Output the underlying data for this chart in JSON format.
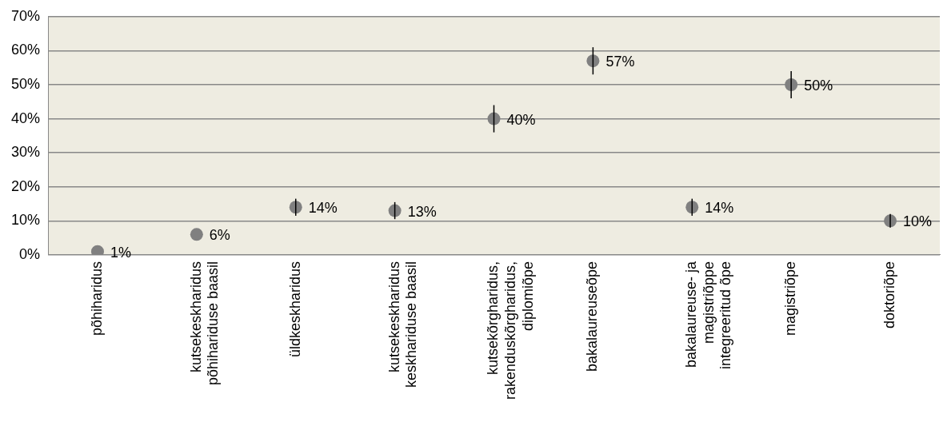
{
  "chart_data": {
    "type": "scatter",
    "categories": [
      "põhiharidus",
      "kutsekeskharidus põhihariduse baasil",
      "üldkeskharidus",
      "kutsekeskharidus keskhariduse baasil",
      "kutsekõrgharidus, rakenduskõrgharidus, diplomiõpe",
      "bakalaureuseõpe",
      "bakalaureuse- ja magistriõppe integreeritud õpe",
      "magistriõpe",
      "doktoriõpe"
    ],
    "values": [
      1,
      6,
      14,
      13,
      40,
      57,
      14,
      50,
      10
    ],
    "errors": [
      null,
      null,
      2.5,
      2.5,
      4,
      4,
      2.5,
      4,
      2
    ],
    "value_labels": [
      "1%",
      "6%",
      "14%",
      "13%",
      "40%",
      "57%",
      "14%",
      "50%",
      "10%"
    ],
    "color": "#808080",
    "marker": "circle",
    "ylim": [
      0,
      70
    ],
    "yticks": [
      {
        "value": 0,
        "label": "0%"
      },
      {
        "value": 10,
        "label": "10%"
      },
      {
        "value": 20,
        "label": "20%"
      },
      {
        "value": 30,
        "label": "30%"
      },
      {
        "value": 40,
        "label": "40%"
      },
      {
        "value": 50,
        "label": "50%"
      },
      {
        "value": 60,
        "label": "60%"
      },
      {
        "value": 70,
        "label": "70%"
      }
    ],
    "grid": "y",
    "legend": false
  }
}
